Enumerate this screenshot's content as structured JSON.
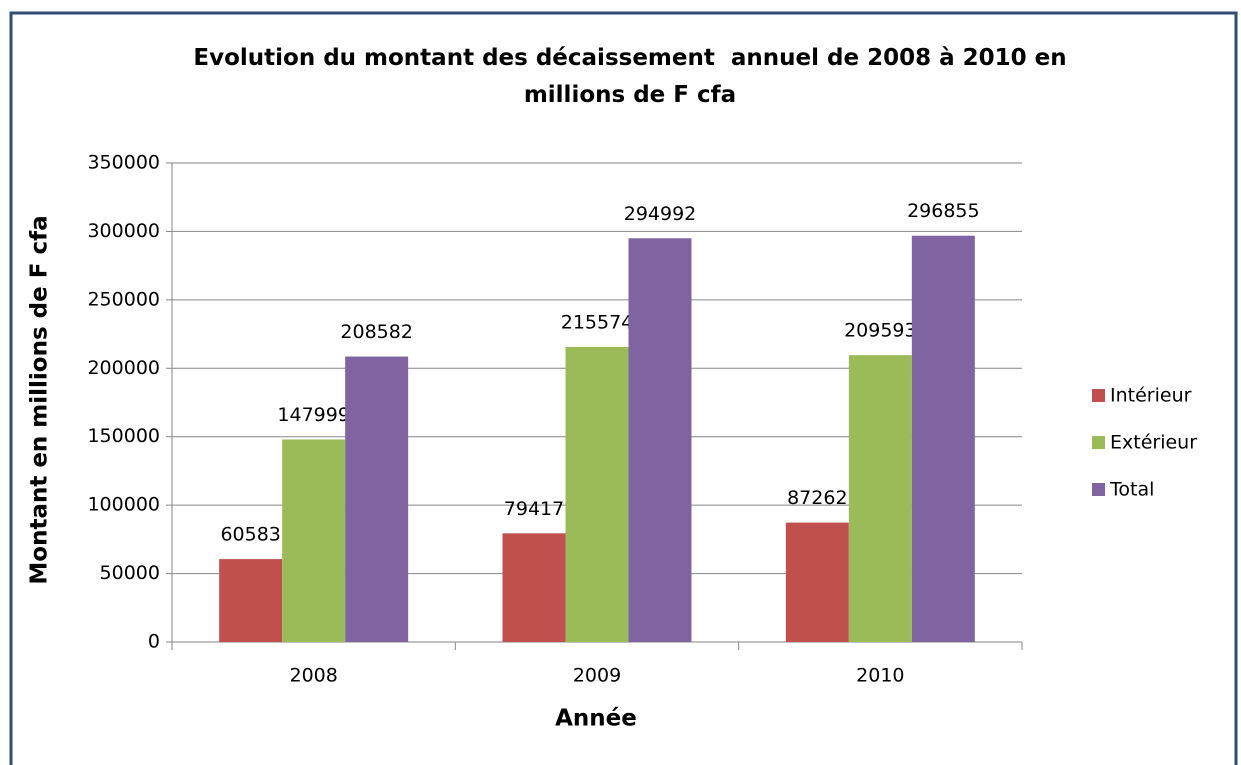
{
  "chart_data": {
    "type": "bar",
    "title": "Evolution du montant des décaissement  annuel de 2008 à 2010 en millions de F cfa",
    "x_label": "Année",
    "y_label": "Montant en millions de F cfa",
    "categories": [
      "2008",
      "2009",
      "2010"
    ],
    "series": [
      {
        "name": "Intérieur",
        "color": "#c0504d",
        "values": [
          60583,
          79417,
          87262
        ]
      },
      {
        "name": "Extérieur",
        "color": "#9bbb59",
        "values": [
          147999,
          215574,
          209593
        ]
      },
      {
        "name": "Total",
        "color": "#8064a2",
        "values": [
          208582,
          294992,
          296855
        ]
      }
    ],
    "ylim": [
      0,
      350000
    ],
    "yticks": [
      0,
      50000,
      100000,
      150000,
      200000,
      250000,
      300000,
      350000
    ],
    "grid": true,
    "legend": "right"
  }
}
